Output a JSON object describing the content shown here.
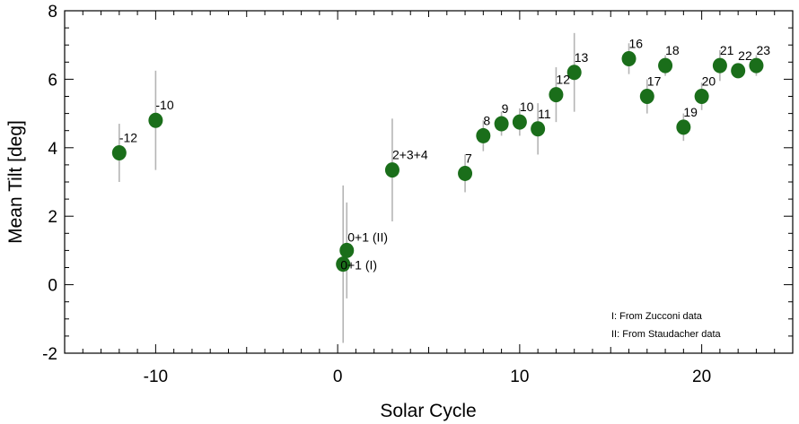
{
  "chart_data": {
    "type": "scatter",
    "title": "",
    "xlabel": "Solar Cycle",
    "ylabel": "Mean Tilt [deg]",
    "xlim": [
      -15,
      25
    ],
    "ylim": [
      -2,
      8
    ],
    "x_ticks": [
      -10,
      0,
      10,
      20
    ],
    "y_ticks": [
      -2,
      0,
      2,
      4,
      6,
      8
    ],
    "grid": false,
    "marker_color": "#1a6e1a",
    "errorbar_color": "#b5b5b5",
    "points": [
      {
        "label": "-12",
        "x": -12,
        "y": 3.85,
        "err": 0.85
      },
      {
        "label": "-10",
        "x": -10,
        "y": 4.8,
        "err": 1.45
      },
      {
        "label": "0+1 (II)",
        "x": 0.5,
        "y": 1.0,
        "err": 1.4
      },
      {
        "label": "0+1 (I)",
        "x": 0.3,
        "y": 0.6,
        "err": 2.3
      },
      {
        "label": "2+3+4",
        "x": 3,
        "y": 3.35,
        "err": 1.5
      },
      {
        "label": "7",
        "x": 7,
        "y": 3.25,
        "err": 0.55
      },
      {
        "label": "8",
        "x": 8,
        "y": 4.35,
        "err": 0.45
      },
      {
        "label": "9",
        "x": 9,
        "y": 4.7,
        "err": 0.35
      },
      {
        "label": "10",
        "x": 10,
        "y": 4.75,
        "err": 0.4
      },
      {
        "label": "11",
        "x": 11,
        "y": 4.55,
        "err": 0.75
      },
      {
        "label": "12",
        "x": 12,
        "y": 5.55,
        "err": 0.8
      },
      {
        "label": "13",
        "x": 13,
        "y": 6.2,
        "err": 1.15
      },
      {
        "label": "16",
        "x": 16,
        "y": 6.6,
        "err": 0.45
      },
      {
        "label": "17",
        "x": 17,
        "y": 5.5,
        "err": 0.5
      },
      {
        "label": "18",
        "x": 18,
        "y": 6.4,
        "err": 0.3
      },
      {
        "label": "19",
        "x": 19,
        "y": 4.6,
        "err": 0.4
      },
      {
        "label": "20",
        "x": 20,
        "y": 5.5,
        "err": 0.4
      },
      {
        "label": "21",
        "x": 21,
        "y": 6.4,
        "err": 0.45
      },
      {
        "label": "22",
        "x": 22,
        "y": 6.25,
        "err": 0.2
      },
      {
        "label": "23",
        "x": 23,
        "y": 6.4,
        "err": 0.3
      }
    ],
    "annotations": [
      "I: From Zucconi data",
      "II: From Staudacher data"
    ]
  }
}
